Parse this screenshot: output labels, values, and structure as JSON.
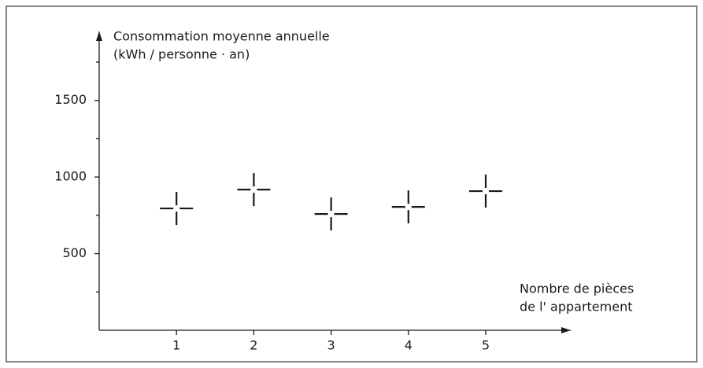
{
  "chart_data": {
    "type": "scatter",
    "y_label": [
      "Consommation moyenne annuelle",
      "(kWh / personne · an)"
    ],
    "x_label": [
      "Nombre de pièces",
      "de l' appartement"
    ],
    "x": [
      1,
      2,
      3,
      4,
      5
    ],
    "y": [
      795,
      918,
      759,
      805,
      908
    ],
    "color": "#1a1a1a",
    "xlim": [
      0,
      6.1
    ],
    "xticks": [
      1,
      2,
      3,
      4,
      5
    ],
    "ylim": [
      0,
      1950
    ],
    "yticks": [
      500,
      1000,
      1500
    ],
    "yminorticks": [
      250,
      750,
      1250,
      1750
    ],
    "grid": false
  }
}
